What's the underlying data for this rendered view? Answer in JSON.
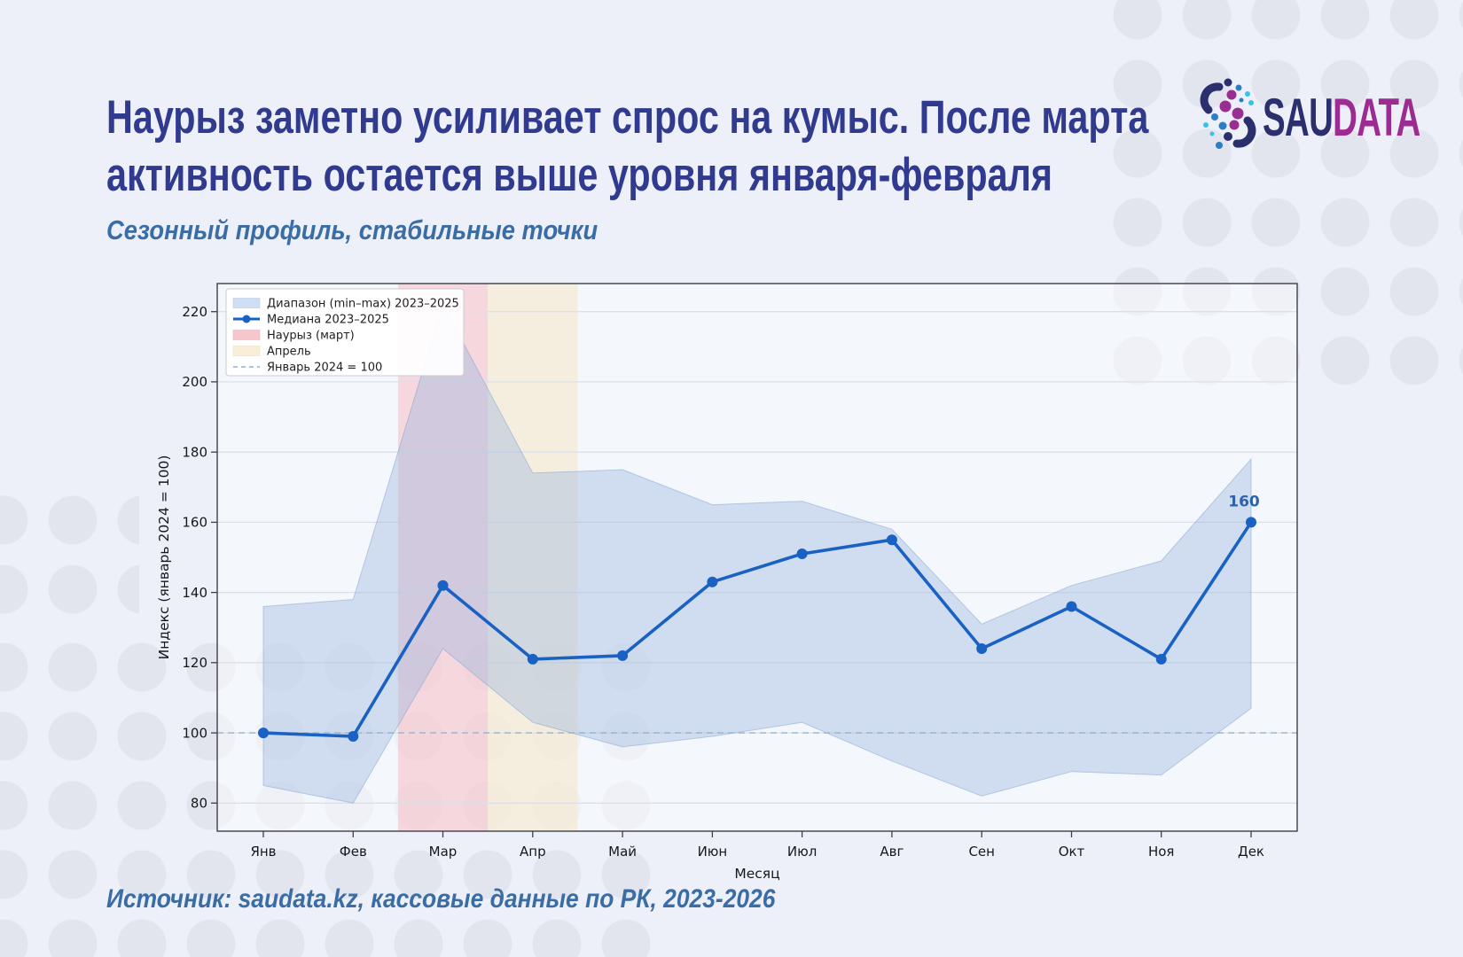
{
  "header": {
    "title_line1": "Наурыз заметно усиливает спрос на кумыс. После марта",
    "title_line2": "активность остается выше уровня января-февраля",
    "subtitle": "Сезонный профиль, стабильные точки"
  },
  "logo": {
    "part1": "SAU",
    "part2": "DATA"
  },
  "source": "Источник: saudata.kz, кассовые данные по РК, 2023-2026",
  "chart_data": {
    "type": "line",
    "categories": [
      "Янв",
      "Фев",
      "Мар",
      "Апр",
      "Май",
      "Июн",
      "Июл",
      "Авг",
      "Сен",
      "Окт",
      "Ноя",
      "Дек"
    ],
    "xlabel": "Месяц",
    "ylabel": "Индекс (январь 2024 = 100)",
    "ylim": [
      72,
      228
    ],
    "yticks": [
      80,
      100,
      120,
      140,
      160,
      180,
      200,
      220
    ],
    "grid": true,
    "legend_position": "upper left",
    "series": [
      {
        "name": "Медиана 2023–2025",
        "type": "line",
        "color": "#1961c3",
        "values": [
          100,
          99,
          142,
          121,
          122,
          143,
          151,
          155,
          124,
          136,
          121,
          160
        ]
      },
      {
        "name": "Диапазон (min–max) 2023–2025",
        "type": "band",
        "color": "rgba(150,180,220,0.38)",
        "min": [
          85,
          80,
          124,
          103,
          96,
          99,
          103,
          92,
          82,
          89,
          88,
          107
        ],
        "max": [
          136,
          138,
          222,
          174,
          175,
          165,
          166,
          158,
          131,
          142,
          149,
          178
        ]
      }
    ],
    "vspans": [
      {
        "key": "nauryz-march-band",
        "label": "Наурыз (март)",
        "index": 2,
        "color": "rgba(247,183,192,0.5)"
      },
      {
        "key": "april-band",
        "label": "Апрель",
        "index": 3,
        "color": "rgba(246,232,198,0.55)"
      }
    ],
    "baseline": {
      "label": "Январь 2024 = 100",
      "value": 100,
      "color": "#90b4d6"
    },
    "annotation": {
      "text": "160",
      "index": 11,
      "value": 160,
      "color": "#2d62ac"
    },
    "legend": [
      {
        "label": "Диапазон (min–max) 2023–2025",
        "swatch": "band"
      },
      {
        "label": "Медиана 2023–2025",
        "swatch": "line-marker"
      },
      {
        "label": "Наурыз (март)",
        "swatch": "pink"
      },
      {
        "label": "Апрель",
        "swatch": "cream"
      },
      {
        "label": "Январь 2024 = 100",
        "swatch": "dashed"
      }
    ]
  }
}
